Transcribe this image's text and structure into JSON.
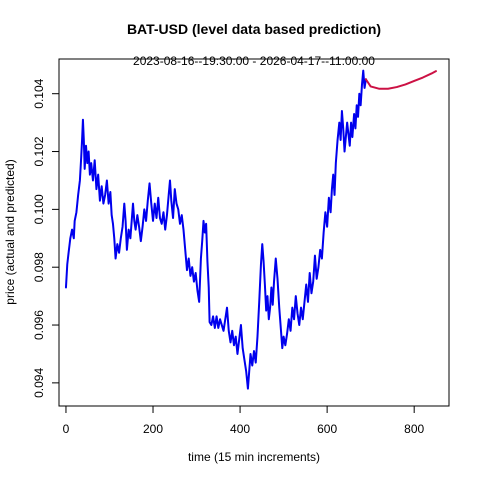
{
  "chart_data": {
    "type": "line",
    "title": "BAT-USD (level data based prediction)",
    "subtitle": "2023-08-16--19:30:00  -  2026-04-17--11:00:00",
    "xlabel": "time (15 min increments)",
    "ylabel": "price (actual and predicted)",
    "xlim": [
      -16,
      880
    ],
    "ylim": [
      0.0932,
      0.1052
    ],
    "x_ticks": [
      0,
      200,
      400,
      600,
      800
    ],
    "y_ticks": [
      0.094,
      0.096,
      0.098,
      0.1,
      0.102,
      0.104
    ],
    "x_tick_labels": [
      "0",
      "200",
      "400",
      "600",
      "800"
    ],
    "y_tick_labels": [
      "0.094",
      "0.096",
      "0.098",
      "0.100",
      "0.102",
      "0.104"
    ],
    "grid": false,
    "legend": "none",
    "series": [
      {
        "role": "actual",
        "color": "#0000ee",
        "points": [
          [
            0,
            0.0973
          ],
          [
            3,
            0.0981
          ],
          [
            6,
            0.0985
          ],
          [
            10,
            0.099
          ],
          [
            14,
            0.0993
          ],
          [
            18,
            0.099
          ],
          [
            20,
            0.0996
          ],
          [
            24,
            0.0999
          ],
          [
            28,
            0.1005
          ],
          [
            32,
            0.101
          ],
          [
            35,
            0.1018
          ],
          [
            37,
            0.1024
          ],
          [
            39,
            0.1031
          ],
          [
            41,
            0.1024
          ],
          [
            43,
            0.1014
          ],
          [
            46,
            0.1022
          ],
          [
            49,
            0.1016
          ],
          [
            52,
            0.102
          ],
          [
            55,
            0.1012
          ],
          [
            58,
            0.1016
          ],
          [
            62,
            0.101
          ],
          [
            66,
            0.1017
          ],
          [
            70,
            0.1007
          ],
          [
            74,
            0.1012
          ],
          [
            78,
            0.1003
          ],
          [
            82,
            0.1008
          ],
          [
            86,
            0.1002
          ],
          [
            90,
            0.1005
          ],
          [
            94,
            0.101
          ],
          [
            98,
            0.1002
          ],
          [
            102,
            0.1006
          ],
          [
            105,
            0.0998
          ],
          [
            108,
            0.0995
          ],
          [
            111,
            0.099
          ],
          [
            114,
            0.0983
          ],
          [
            118,
            0.0988
          ],
          [
            122,
            0.0985
          ],
          [
            126,
            0.099
          ],
          [
            130,
            0.0994
          ],
          [
            134,
            0.1002
          ],
          [
            137,
            0.0996
          ],
          [
            140,
            0.0986
          ],
          [
            144,
            0.0993
          ],
          [
            148,
            0.099
          ],
          [
            151,
            0.0996
          ],
          [
            154,
            0.1002
          ],
          [
            157,
            0.0996
          ],
          [
            160,
            0.0993
          ],
          [
            164,
            0.0998
          ],
          [
            168,
            0.0994
          ],
          [
            172,
            0.0989
          ],
          [
            176,
            0.0994
          ],
          [
            180,
            0.1
          ],
          [
            184,
            0.0996
          ],
          [
            188,
            0.1003
          ],
          [
            192,
            0.1009
          ],
          [
            196,
            0.1002
          ],
          [
            200,
            0.0996
          ],
          [
            204,
            0.1002
          ],
          [
            208,
            0.0997
          ],
          [
            212,
            0.1004
          ],
          [
            216,
            0.0997
          ],
          [
            220,
            0.0995
          ],
          [
            224,
            0.0999
          ],
          [
            228,
            0.0993
          ],
          [
            232,
            0.0998
          ],
          [
            236,
            0.1005
          ],
          [
            239,
            0.101
          ],
          [
            242,
            0.1003
          ],
          [
            246,
            0.0997
          ],
          [
            250,
            0.1007
          ],
          [
            254,
            0.1002
          ],
          [
            258,
            0.1
          ],
          [
            262,
            0.0995
          ],
          [
            266,
            0.0998
          ],
          [
            270,
            0.0993
          ],
          [
            274,
            0.0986
          ],
          [
            278,
            0.0979
          ],
          [
            282,
            0.0983
          ],
          [
            286,
            0.0977
          ],
          [
            290,
            0.098
          ],
          [
            294,
            0.0975
          ],
          [
            298,
            0.0978
          ],
          [
            302,
            0.0972
          ],
          [
            306,
            0.0968
          ],
          [
            310,
            0.0983
          ],
          [
            313,
            0.0989
          ],
          [
            316,
            0.0996
          ],
          [
            319,
            0.0992
          ],
          [
            322,
            0.0995
          ],
          [
            325,
            0.0982
          ],
          [
            328,
            0.0973
          ],
          [
            330,
            0.0961
          ],
          [
            334,
            0.096
          ],
          [
            338,
            0.0963
          ],
          [
            342,
            0.0959
          ],
          [
            346,
            0.0963
          ],
          [
            350,
            0.0959
          ],
          [
            354,
            0.0962
          ],
          [
            358,
            0.096
          ],
          [
            362,
            0.0958
          ],
          [
            366,
            0.0962
          ],
          [
            370,
            0.0966
          ],
          [
            374,
            0.0958
          ],
          [
            378,
            0.0954
          ],
          [
            382,
            0.0958
          ],
          [
            386,
            0.0953
          ],
          [
            390,
            0.0956
          ],
          [
            394,
            0.095
          ],
          [
            398,
            0.0955
          ],
          [
            402,
            0.096
          ],
          [
            406,
            0.0952
          ],
          [
            410,
            0.0948
          ],
          [
            414,
            0.0944
          ],
          [
            418,
            0.0938
          ],
          [
            421,
            0.0944
          ],
          [
            424,
            0.095
          ],
          [
            428,
            0.0946
          ],
          [
            432,
            0.0951
          ],
          [
            436,
            0.0947
          ],
          [
            440,
            0.0956
          ],
          [
            444,
            0.0968
          ],
          [
            448,
            0.0981
          ],
          [
            451,
            0.0988
          ],
          [
            454,
            0.0982
          ],
          [
            457,
            0.0974
          ],
          [
            460,
            0.0965
          ],
          [
            463,
            0.097
          ],
          [
            466,
            0.0962
          ],
          [
            469,
            0.0966
          ],
          [
            472,
            0.0973
          ],
          [
            475,
            0.0967
          ],
          [
            478,
            0.0975
          ],
          [
            482,
            0.0983
          ],
          [
            486,
            0.0976
          ],
          [
            490,
            0.0966
          ],
          [
            494,
            0.0958
          ],
          [
            497,
            0.0952
          ],
          [
            500,
            0.0956
          ],
          [
            504,
            0.0953
          ],
          [
            508,
            0.0957
          ],
          [
            512,
            0.0962
          ],
          [
            516,
            0.0958
          ],
          [
            520,
            0.0966
          ],
          [
            524,
            0.0962
          ],
          [
            528,
            0.097
          ],
          [
            532,
            0.0964
          ],
          [
            536,
            0.096
          ],
          [
            540,
            0.0966
          ],
          [
            544,
            0.0962
          ],
          [
            548,
            0.0968
          ],
          [
            552,
            0.0974
          ],
          [
            556,
            0.0968
          ],
          [
            560,
            0.0978
          ],
          [
            564,
            0.0971
          ],
          [
            568,
            0.0975
          ],
          [
            572,
            0.0984
          ],
          [
            576,
            0.0976
          ],
          [
            580,
            0.098
          ],
          [
            584,
            0.0986
          ],
          [
            588,
            0.0983
          ],
          [
            592,
            0.0992
          ],
          [
            596,
            0.0999
          ],
          [
            600,
            0.0994
          ],
          [
            604,
            0.1004
          ],
          [
            608,
            0.0999
          ],
          [
            611,
            0.1007
          ],
          [
            614,
            0.1012
          ],
          [
            617,
            0.1005
          ],
          [
            620,
            0.1016
          ],
          [
            624,
            0.1024
          ],
          [
            628,
            0.103
          ],
          [
            631,
            0.1024
          ],
          [
            634,
            0.1034
          ],
          [
            637,
            0.1028
          ],
          [
            640,
            0.102
          ],
          [
            643,
            0.1025
          ],
          [
            646,
            0.103
          ],
          [
            649,
            0.1026
          ],
          [
            652,
            0.1022
          ],
          [
            655,
            0.103
          ],
          [
            658,
            0.1025
          ],
          [
            662,
            0.1033
          ],
          [
            665,
            0.1028
          ],
          [
            668,
            0.1036
          ],
          [
            671,
            0.1032
          ],
          [
            674,
            0.104
          ],
          [
            677,
            0.1036
          ],
          [
            680,
            0.1043
          ],
          [
            683,
            0.1048
          ],
          [
            686,
            0.1042
          ],
          [
            689,
            0.1045
          ]
        ]
      },
      {
        "role": "predicted",
        "color": "#cc1144",
        "points": [
          [
            689,
            0.1045
          ],
          [
            700,
            0.10425
          ],
          [
            720,
            0.10417
          ],
          [
            740,
            0.10417
          ],
          [
            760,
            0.10423
          ],
          [
            780,
            0.10432
          ],
          [
            800,
            0.10444
          ],
          [
            820,
            0.10456
          ],
          [
            840,
            0.1047
          ],
          [
            850,
            0.10478
          ]
        ]
      }
    ]
  }
}
